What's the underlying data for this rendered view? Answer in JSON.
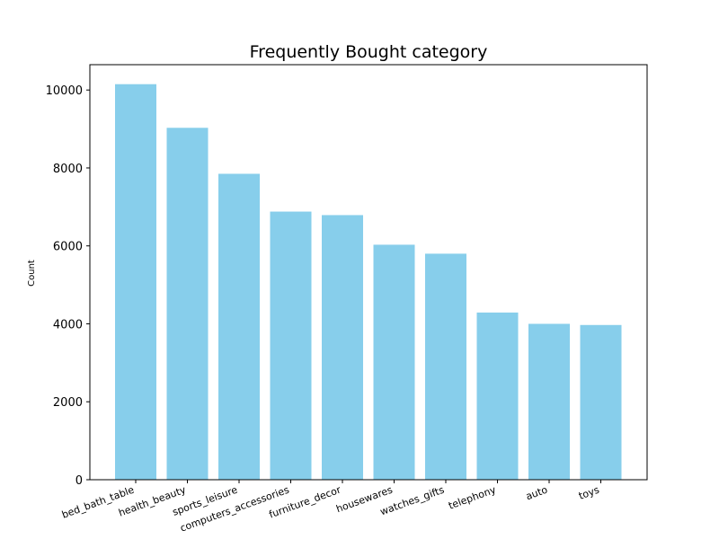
{
  "chart_data": {
    "type": "bar",
    "title": "Frequently Bought category",
    "xlabel": "",
    "ylabel": "Count",
    "categories": [
      "bed_bath_table",
      "health_beauty",
      "sports_leisure",
      "computers_accessories",
      "furniture_decor",
      "housewares",
      "watches_gifts",
      "telephony",
      "auto",
      "toys"
    ],
    "values": [
      10150,
      9030,
      7850,
      6880,
      6790,
      6030,
      5800,
      4290,
      4000,
      3970
    ],
    "ylim": [
      0,
      10650
    ],
    "yticks": [
      0,
      2000,
      4000,
      6000,
      8000,
      10000
    ],
    "bar_color": "#87ceeb",
    "grid": false,
    "legend": "none"
  }
}
